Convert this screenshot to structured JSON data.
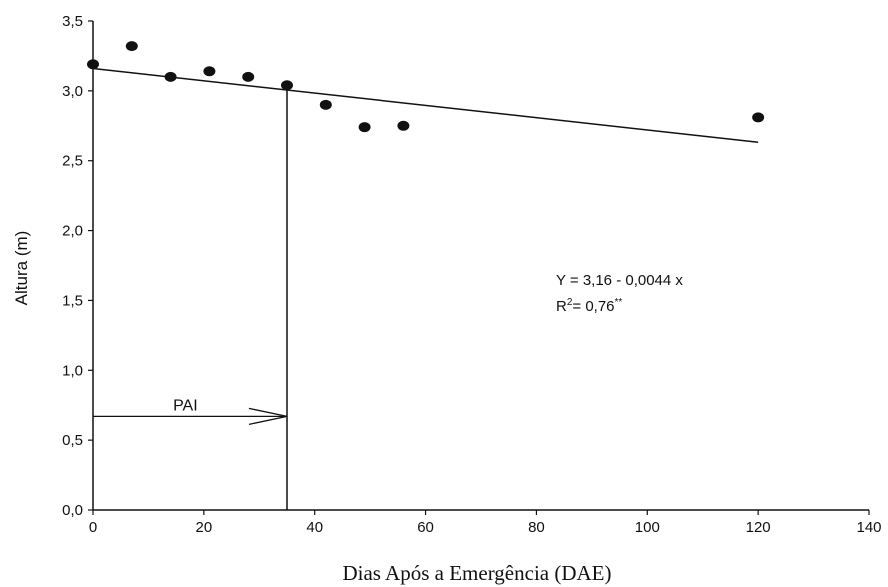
{
  "chart_data": {
    "type": "scatter",
    "xlabel": "Dias Após a Emergência (DAE)",
    "ylabel": "Altura (m)",
    "xlim": [
      0,
      140
    ],
    "ylim": [
      0,
      3.5
    ],
    "x_ticks": [
      "0",
      "20",
      "40",
      "60",
      "80",
      "100",
      "120",
      "140"
    ],
    "y_ticks": [
      "0,0",
      "0,5",
      "1,0",
      "1,5",
      "2,0",
      "2,5",
      "3,0",
      "3,5"
    ],
    "points": [
      {
        "x": 0,
        "y": 3.19
      },
      {
        "x": 7,
        "y": 3.32
      },
      {
        "x": 14,
        "y": 3.1
      },
      {
        "x": 21,
        "y": 3.14
      },
      {
        "x": 28,
        "y": 3.1
      },
      {
        "x": 35,
        "y": 3.04
      },
      {
        "x": 42,
        "y": 2.9
      },
      {
        "x": 49,
        "y": 2.74
      },
      {
        "x": 56,
        "y": 2.75
      },
      {
        "x": 120,
        "y": 2.81
      }
    ],
    "regression": {
      "intercept": 3.16,
      "slope": -0.0044,
      "x_range": [
        0,
        120
      ],
      "equation_text": "Y = 3,16 - 0,0044 x",
      "r2_prefix": "R",
      "r2_sup": "2",
      "r2_suffix": "= 0,76",
      "r2_significance": "**"
    },
    "pai": {
      "label": "PAI",
      "x": 35,
      "arrow_y": 0.67
    },
    "grid": false,
    "legend": "none"
  }
}
